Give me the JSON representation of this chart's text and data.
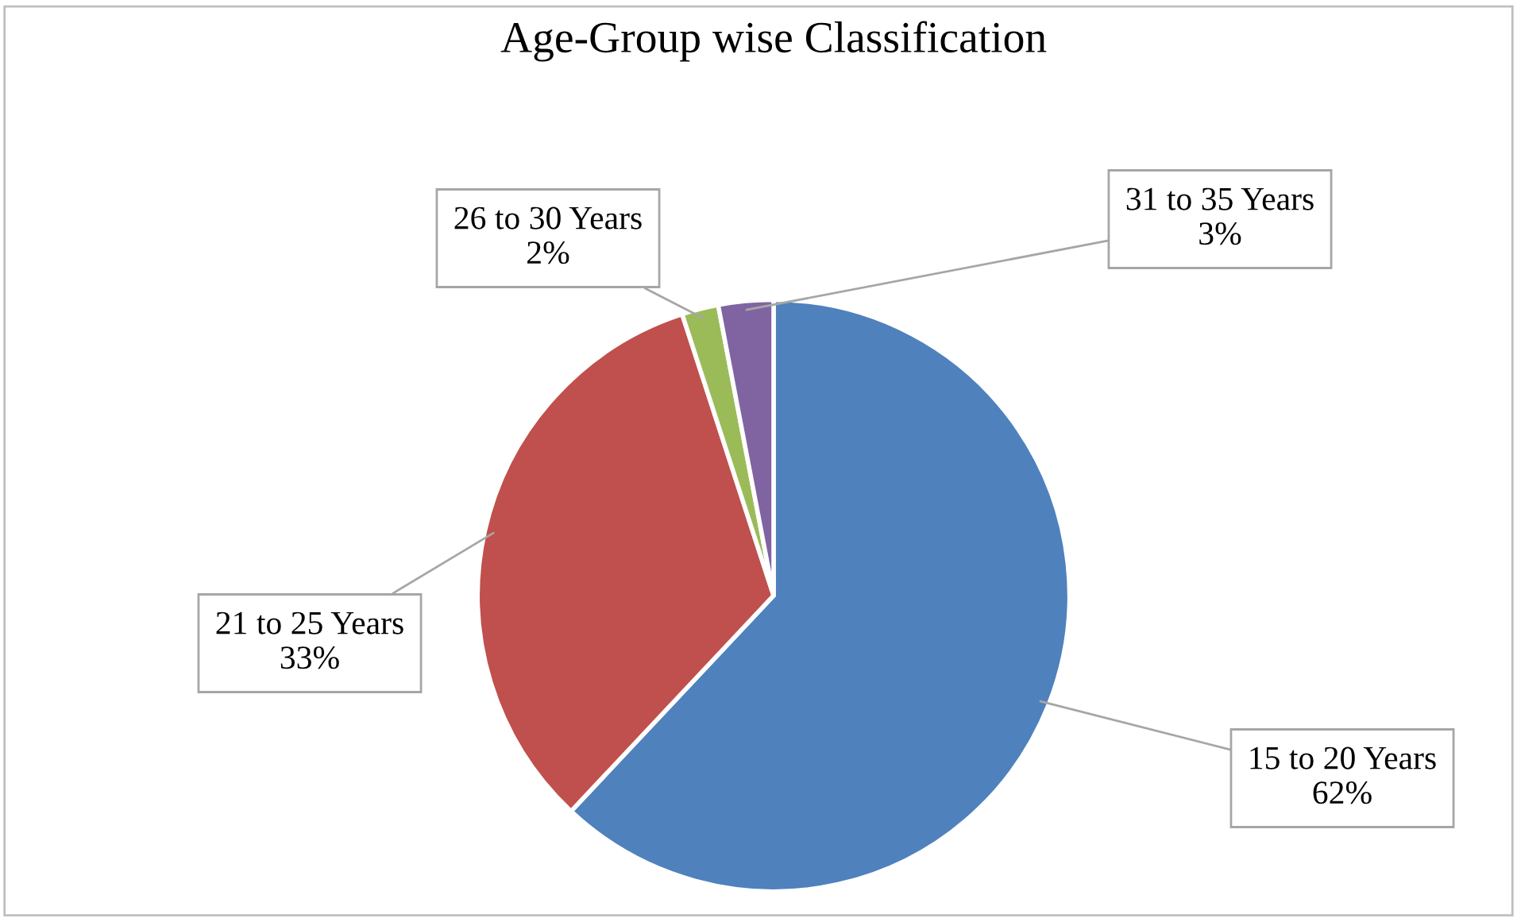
{
  "chart_data": {
    "type": "pie",
    "title": "Age-Group wise Classification",
    "categories": [
      "15 to 20 Years",
      "21 to 25 Years",
      "26 to 30 Years",
      "31 to 35 Years"
    ],
    "values": [
      62,
      33,
      2,
      3
    ],
    "colors": [
      "#4f81bd",
      "#c0504d",
      "#9bbb59",
      "#8064a2"
    ],
    "value_labels": [
      "62%",
      "33%",
      "2%",
      "3%"
    ],
    "legend": false
  }
}
